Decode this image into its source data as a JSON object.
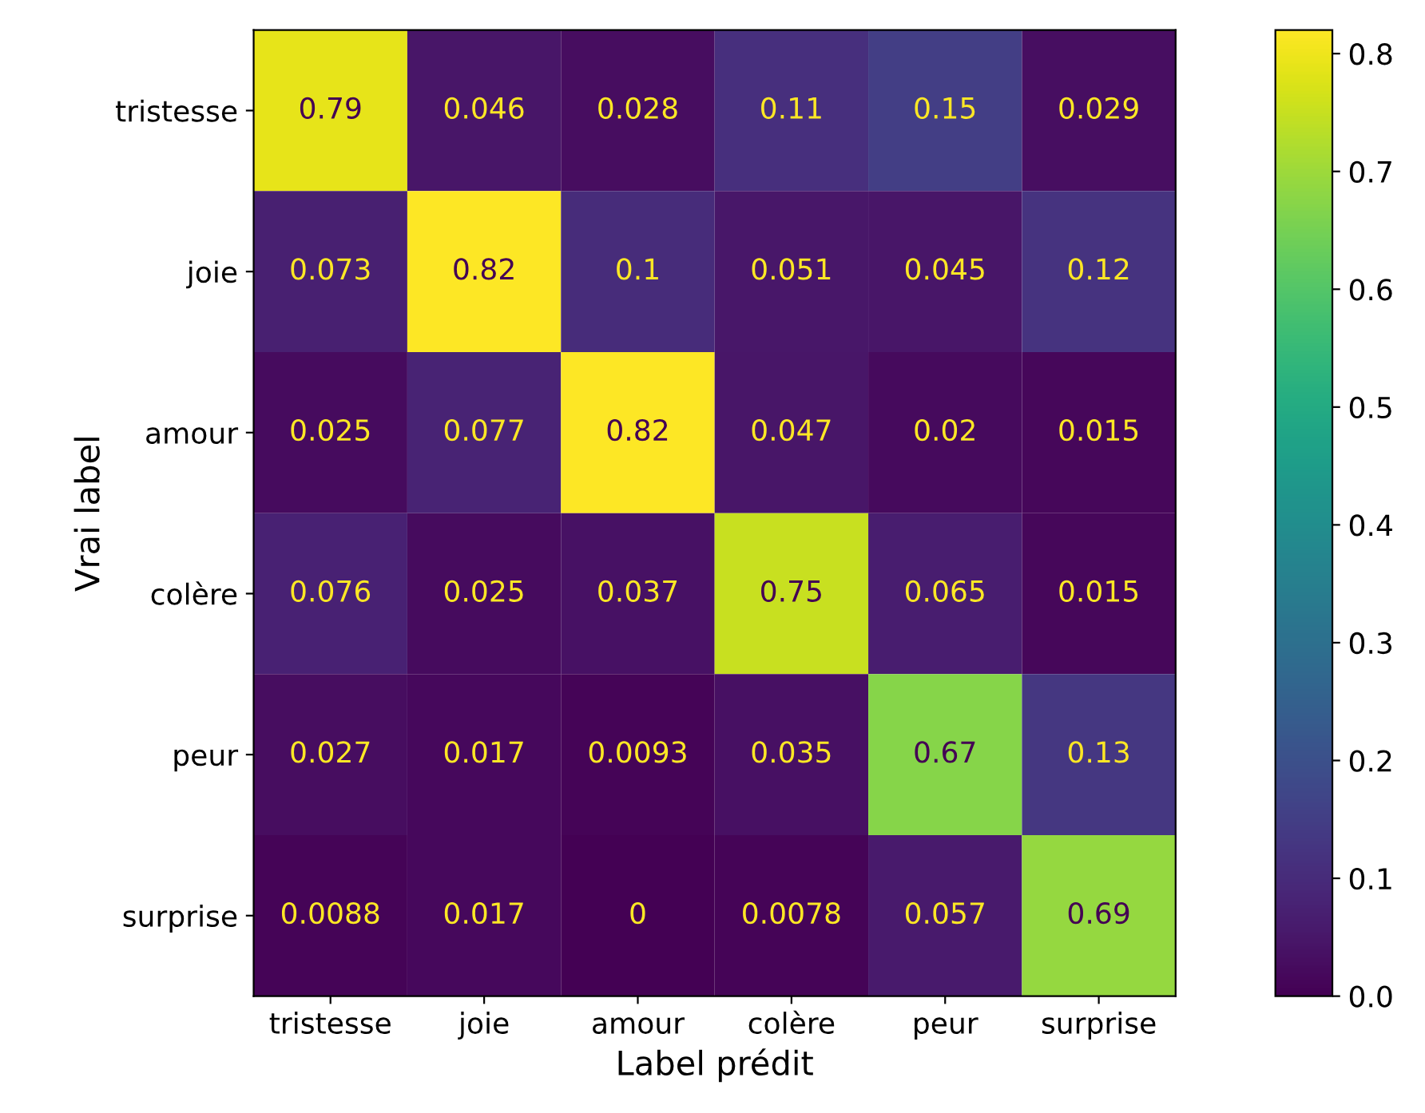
{
  "chart_data": {
    "type": "heatmap",
    "xlabel": "Label prédit",
    "ylabel": "Vrai label",
    "categories": [
      "tristesse",
      "joie",
      "amour",
      "colère",
      "peur",
      "surprise"
    ],
    "y_categories": [
      "tristesse",
      "joie",
      "amour",
      "colère",
      "peur",
      "surprise"
    ],
    "cells": [
      [
        0.79,
        0.046,
        0.028,
        0.11,
        0.15,
        0.029
      ],
      [
        0.073,
        0.82,
        0.1,
        0.051,
        0.045,
        0.12
      ],
      [
        0.025,
        0.077,
        0.82,
        0.047,
        0.02,
        0.015
      ],
      [
        0.076,
        0.025,
        0.037,
        0.75,
        0.065,
        0.015
      ],
      [
        0.027,
        0.017,
        0.0093,
        0.035,
        0.67,
        0.13
      ],
      [
        0.0088,
        0.017,
        0,
        0.0078,
        0.057,
        0.69
      ]
    ],
    "clim": [
      0,
      0.82
    ],
    "cticks": [
      {
        "value": 0,
        "label": "0.0"
      },
      0.1,
      0.2,
      0.3,
      0.4,
      0.5,
      0.6,
      0.7,
      0.8
    ],
    "data_labels": true
  }
}
